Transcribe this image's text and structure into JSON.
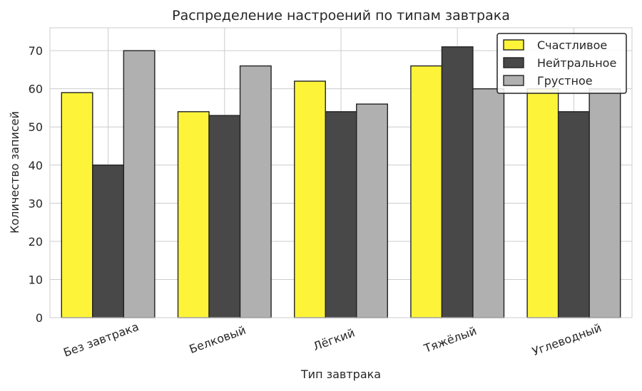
{
  "chart_data": {
    "type": "bar",
    "title": "Распределение настроений по типам завтрака",
    "xlabel": "Тип завтрака",
    "ylabel": "Количество записей",
    "categories": [
      "Без завтрака",
      "Белковый",
      "Лёгкий",
      "Тяжёлый",
      "Углеводный"
    ],
    "series": [
      {
        "name": "Счастливое",
        "color": "#fdf43a",
        "values": [
          59,
          54,
          62,
          66,
          60
        ]
      },
      {
        "name": "Нейтральное",
        "color": "#484848",
        "values": [
          40,
          53,
          54,
          71,
          54
        ]
      },
      {
        "name": "Грустное",
        "color": "#b0b0b0",
        "values": [
          70,
          66,
          56,
          60,
          60
        ]
      }
    ],
    "ylim": [
      0,
      76
    ],
    "yticks": [
      0,
      10,
      20,
      30,
      40,
      50,
      60,
      70
    ],
    "grid": true,
    "legend_position": "top-right"
  }
}
